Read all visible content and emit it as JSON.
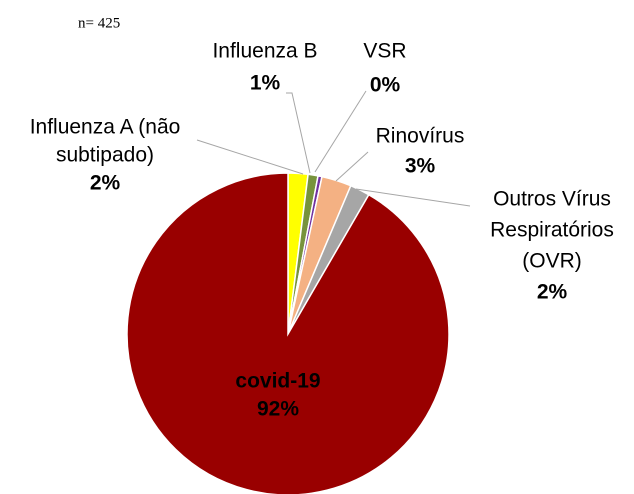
{
  "chart_data": {
    "type": "pie",
    "subtitle": "n= 425",
    "categories": [
      [
        "Influenza A (não",
        "subtipado)"
      ],
      [
        "Influenza B"
      ],
      [
        "VSR"
      ],
      [
        "Rinovírus"
      ],
      [
        "Outros Vírus",
        "Respiratórios",
        "(OVR)"
      ],
      [
        "covid-19"
      ]
    ],
    "values": [
      2,
      1,
      0.4,
      3,
      2,
      92
    ],
    "value_labels": [
      "2%",
      "1%",
      "0%",
      "3%",
      "2%",
      "92%"
    ],
    "colors": [
      "#ffff00",
      "#77933c",
      "#7030a0",
      "#f4b183",
      "#a6a6a6",
      "#990000"
    ]
  }
}
